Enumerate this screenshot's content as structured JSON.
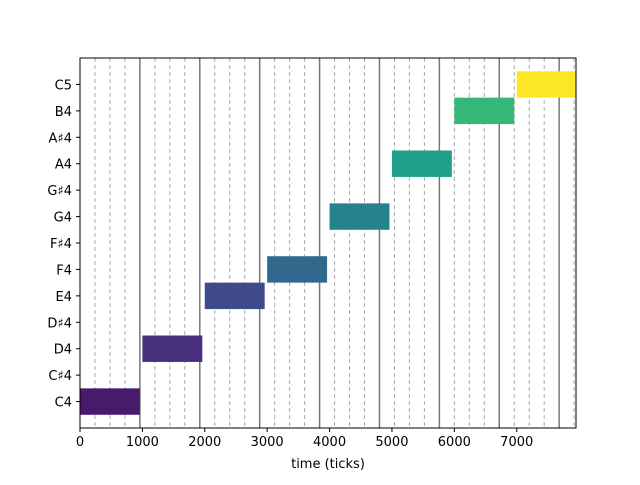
{
  "chart_data": {
    "type": "bar",
    "subtype": "piano-roll",
    "title": "",
    "xlabel": "time (ticks)",
    "ylabel": "",
    "xlim": [
      0,
      7950
    ],
    "x_ticks": [
      0,
      1000,
      2000,
      3000,
      4000,
      5000,
      6000,
      7000
    ],
    "x_tick_labels": [
      "0",
      "1000",
      "2000",
      "3000",
      "4000",
      "5000",
      "6000",
      "7000"
    ],
    "y_ticks": [
      "C4",
      "C♯4",
      "D4",
      "D♯4",
      "E4",
      "F4",
      "F♯4",
      "G4",
      "G♯4",
      "A4",
      "A♯4",
      "B4",
      "C5"
    ],
    "beat_lines_solid": [
      0,
      960,
      1920,
      2880,
      3840,
      4800,
      5760,
      6720,
      7680
    ],
    "beat_lines_dashed_step": 240,
    "series": [
      {
        "values": [
          {
            "pitch": "C4",
            "start": 0,
            "end": 960,
            "color": "#481a6c"
          },
          {
            "pitch": "D4",
            "start": 1000,
            "end": 1960,
            "color": "#472f7d"
          },
          {
            "pitch": "E4",
            "start": 2000,
            "end": 2960,
            "color": "#3e4a89"
          },
          {
            "pitch": "F4",
            "start": 3000,
            "end": 3960,
            "color": "#31688e"
          },
          {
            "pitch": "G4",
            "start": 4000,
            "end": 4960,
            "color": "#26828e"
          },
          {
            "pitch": "A4",
            "start": 5000,
            "end": 5960,
            "color": "#1f9e89"
          },
          {
            "pitch": "B4",
            "start": 6000,
            "end": 6960,
            "color": "#35b779"
          },
          {
            "pitch": "C5",
            "start": 7000,
            "end": 7960,
            "color": "#fde725"
          }
        ]
      }
    ]
  }
}
